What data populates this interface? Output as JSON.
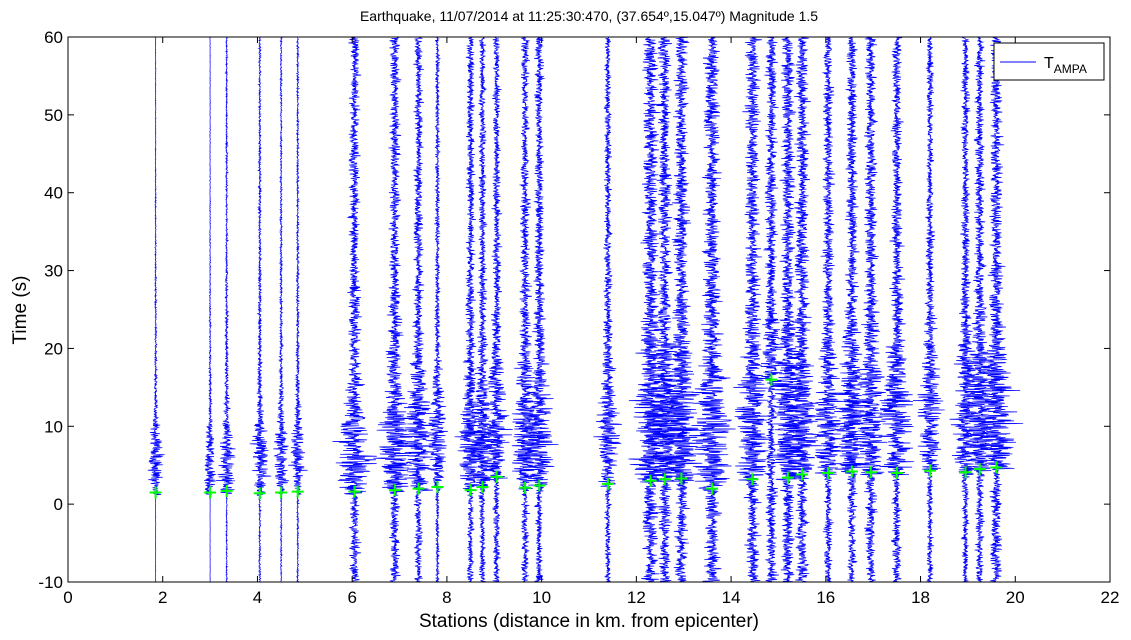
{
  "chart_data": {
    "type": "scatter",
    "title": "Earthquake, 11/07/2014 at 11:25:30:470, (37.654º,15.047º) Magnitude 1.5",
    "xlabel": "Stations (distance in km. from epicenter)",
    "ylabel": "Time (s)",
    "xlim": [
      0,
      22
    ],
    "ylim": [
      -10,
      60
    ],
    "x_ticks": [
      0,
      2,
      4,
      6,
      8,
      10,
      12,
      14,
      16,
      18,
      20,
      22
    ],
    "y_ticks": [
      -10,
      0,
      10,
      20,
      30,
      40,
      50,
      60
    ],
    "grid": false,
    "legend": {
      "position": "top-right",
      "entries": [
        {
          "label_main": "T",
          "label_sub": "AMPA",
          "color": "#0000ff"
        }
      ]
    },
    "traces_color": "#0000ff",
    "picks_color": "#00ff00",
    "stations": [
      {
        "x": 1.85,
        "pick": 1.5,
        "amp": 0.08,
        "width": 0.45,
        "noise": 0.003,
        "env_center": 5.5,
        "env_spread": 4.5
      },
      {
        "x": 3.0,
        "pick": 1.5,
        "amp": 0.07,
        "width": 0.4,
        "noise": 0.003,
        "env_center": 5.0,
        "env_spread": 5.0
      },
      {
        "x": 3.35,
        "pick": 1.7,
        "amp": 0.08,
        "width": 0.45,
        "noise": 0.01,
        "env_center": 5.0,
        "env_spread": 5.0
      },
      {
        "x": 4.05,
        "pick": 1.4,
        "amp": 0.08,
        "width": 0.5,
        "noise": 0.012,
        "env_center": 5.5,
        "env_spread": 5.0
      },
      {
        "x": 4.5,
        "pick": 1.5,
        "amp": 0.07,
        "width": 0.45,
        "noise": 0.01,
        "env_center": 6.0,
        "env_spread": 5.5
      },
      {
        "x": 4.85,
        "pick": 1.6,
        "amp": 0.07,
        "width": 0.45,
        "noise": 0.012,
        "env_center": 6.0,
        "env_spread": 6.0
      },
      {
        "x": 6.05,
        "pick": 1.6,
        "amp": 0.1,
        "width": 0.6,
        "noise": 0.05,
        "env_center": 7.0,
        "env_spread": 7.0
      },
      {
        "x": 6.9,
        "pick": 1.8,
        "amp": 0.1,
        "width": 0.6,
        "noise": 0.05,
        "env_center": 7.5,
        "env_spread": 7.5
      },
      {
        "x": 7.4,
        "pick": 2.0,
        "amp": 0.1,
        "width": 0.6,
        "noise": 0.04,
        "env_center": 8.0,
        "env_spread": 7.5
      },
      {
        "x": 7.8,
        "pick": 2.2,
        "amp": 0.08,
        "width": 0.55,
        "noise": 0.02,
        "env_center": 8.0,
        "env_spread": 7.0
      },
      {
        "x": 8.5,
        "pick": 1.8,
        "amp": 0.09,
        "width": 0.5,
        "noise": 0.045,
        "env_center": 8.0,
        "env_spread": 7.0
      },
      {
        "x": 8.75,
        "pick": 2.2,
        "amp": 0.09,
        "width": 0.5,
        "noise": 0.04,
        "env_center": 8.0,
        "env_spread": 7.5
      },
      {
        "x": 9.05,
        "pick": 3.5,
        "amp": 0.09,
        "width": 0.55,
        "noise": 0.04,
        "env_center": 8.5,
        "env_spread": 7.5
      },
      {
        "x": 9.65,
        "pick": 2.1,
        "amp": 0.09,
        "width": 0.55,
        "noise": 0.045,
        "env_center": 8.5,
        "env_spread": 7.5
      },
      {
        "x": 9.95,
        "pick": 2.4,
        "amp": 0.1,
        "width": 0.6,
        "noise": 0.04,
        "env_center": 8.5,
        "env_spread": 7.5
      },
      {
        "x": 11.4,
        "pick": 2.6,
        "amp": 0.08,
        "width": 0.5,
        "noise": 0.04,
        "env_center": 9.0,
        "env_spread": 7.5
      },
      {
        "x": 12.3,
        "pick": 3.0,
        "amp": 0.1,
        "width": 0.6,
        "noise": 0.08,
        "env_center": 9.5,
        "env_spread": 8.0
      },
      {
        "x": 12.6,
        "pick": 3.2,
        "amp": 0.1,
        "width": 0.55,
        "noise": 0.07,
        "env_center": 9.5,
        "env_spread": 8.0
      },
      {
        "x": 12.95,
        "pick": 3.3,
        "amp": 0.1,
        "width": 0.6,
        "noise": 0.07,
        "env_center": 9.5,
        "env_spread": 8.0
      },
      {
        "x": 13.6,
        "pick": 2.0,
        "amp": 0.1,
        "width": 0.6,
        "noise": 0.08,
        "env_center": 9.5,
        "env_spread": 8.5
      },
      {
        "x": 14.45,
        "pick": 3.2,
        "amp": 0.1,
        "width": 0.6,
        "noise": 0.07,
        "env_center": 10.0,
        "env_spread": 8.5
      },
      {
        "x": 14.85,
        "pick": 16.0,
        "amp": 0.1,
        "width": 0.55,
        "noise": 0.06,
        "env_center": 10.0,
        "env_spread": 8.5
      },
      {
        "x": 15.2,
        "pick": 3.4,
        "amp": 0.1,
        "width": 0.55,
        "noise": 0.07,
        "env_center": 10.0,
        "env_spread": 8.5
      },
      {
        "x": 15.5,
        "pick": 3.8,
        "amp": 0.1,
        "width": 0.55,
        "noise": 0.07,
        "env_center": 10.0,
        "env_spread": 8.5
      },
      {
        "x": 16.05,
        "pick": 4.0,
        "amp": 0.1,
        "width": 0.55,
        "noise": 0.05,
        "env_center": 10.0,
        "env_spread": 8.5
      },
      {
        "x": 16.55,
        "pick": 4.2,
        "amp": 0.1,
        "width": 0.6,
        "noise": 0.05,
        "env_center": 10.5,
        "env_spread": 8.5
      },
      {
        "x": 16.95,
        "pick": 4.1,
        "amp": 0.1,
        "width": 0.55,
        "noise": 0.06,
        "env_center": 10.5,
        "env_spread": 8.5
      },
      {
        "x": 17.5,
        "pick": 4.0,
        "amp": 0.1,
        "width": 0.6,
        "noise": 0.05,
        "env_center": 10.5,
        "env_spread": 8.5
      },
      {
        "x": 18.2,
        "pick": 4.3,
        "amp": 0.09,
        "width": 0.5,
        "noise": 0.04,
        "env_center": 10.5,
        "env_spread": 8.5
      },
      {
        "x": 18.95,
        "pick": 4.1,
        "amp": 0.09,
        "width": 0.55,
        "noise": 0.04,
        "env_center": 11.0,
        "env_spread": 8.5
      },
      {
        "x": 19.25,
        "pick": 4.5,
        "amp": 0.1,
        "width": 0.55,
        "noise": 0.05,
        "env_center": 11.0,
        "env_spread": 8.5
      },
      {
        "x": 19.6,
        "pick": 4.7,
        "amp": 0.11,
        "width": 0.6,
        "noise": 0.06,
        "env_center": 11.0,
        "env_spread": 8.5
      }
    ]
  }
}
